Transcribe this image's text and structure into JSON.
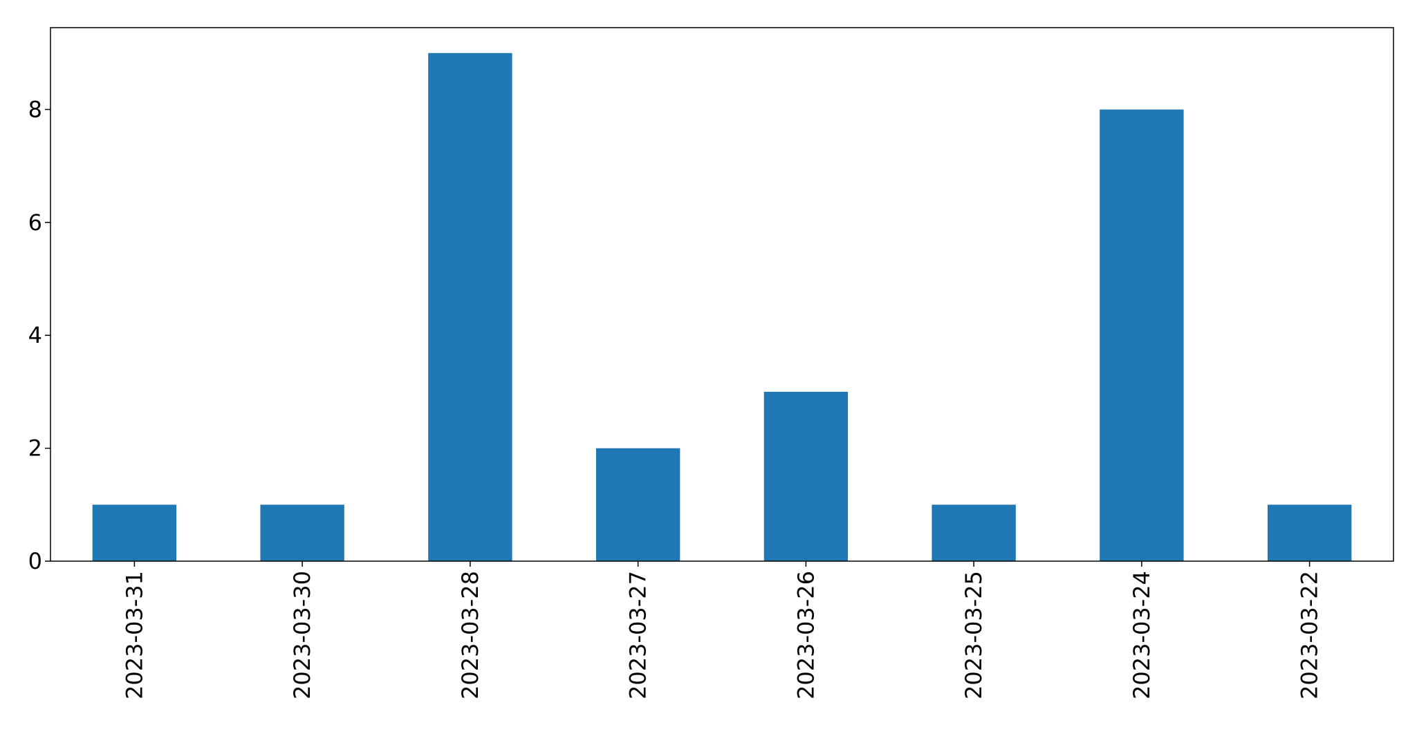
{
  "chart_data": {
    "type": "bar",
    "title": "",
    "xlabel": "",
    "ylabel": "",
    "categories": [
      "2023-03-31",
      "2023-03-30",
      "2023-03-28",
      "2023-03-27",
      "2023-03-26",
      "2023-03-25",
      "2023-03-24",
      "2023-03-22"
    ],
    "values": [
      1,
      1,
      9,
      2,
      3,
      1,
      8,
      1
    ],
    "ylim": [
      0,
      9.45
    ],
    "yticks": [
      0,
      2,
      4,
      6,
      8
    ],
    "ytick_labels": [
      "0",
      "2",
      "4",
      "6",
      "8"
    ],
    "bar_color": "#1f77b4",
    "grid": false,
    "legend": "none"
  }
}
